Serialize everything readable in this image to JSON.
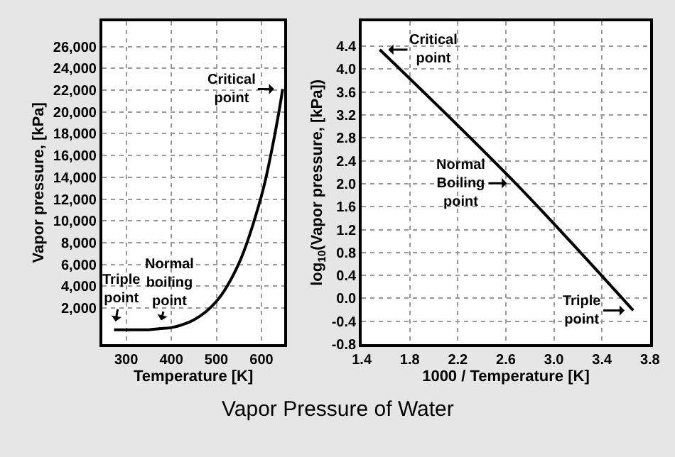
{
  "chart_data": [
    {
      "type": "line",
      "title": "Vapor Pressure of Water",
      "xlabel": "Temperature [K]",
      "ylabel": "Vapor pressure, [kPa]",
      "color": "#000000",
      "grid": true,
      "marker": "none",
      "line_style": "solid",
      "x": [
        273,
        300,
        350,
        373,
        400,
        450,
        500,
        550,
        600,
        620,
        640,
        647
      ],
      "values": [
        0,
        0,
        0,
        100,
        200,
        900,
        2600,
        6100,
        12300,
        15900,
        20300,
        22100
      ],
      "xlim": [
        247,
        651
      ],
      "ylim": [
        -1330,
        28350
      ],
      "xticks": [
        300,
        400,
        500,
        600
      ],
      "yticks": [
        {
          "value": 2000,
          "label": "2,000"
        },
        {
          "value": 4000,
          "label": "4,000"
        },
        {
          "value": 6000,
          "label": "6,000"
        },
        {
          "value": 8000,
          "label": "8,000"
        },
        {
          "value": 10000,
          "label": "10,000"
        },
        {
          "value": 12000,
          "label": "12,000"
        },
        {
          "value": 14000,
          "label": "14,000"
        },
        {
          "value": 16000,
          "label": "16,000"
        },
        {
          "value": 18000,
          "label": "18,000"
        },
        {
          "value": 20000,
          "label": "20,000"
        },
        {
          "value": 22000,
          "label": "22,000"
        },
        {
          "value": 24000,
          "label": "24,000"
        },
        {
          "value": 26000,
          "label": "26,000"
        }
      ],
      "annotations": [
        {
          "text": "Critical\npoint",
          "x": 647,
          "y": 22100
        },
        {
          "text": "Normal\nboiling\npoint",
          "x": 373,
          "y": 100
        },
        {
          "text": "Triple\npoint",
          "x": 273,
          "y": 0
        }
      ]
    },
    {
      "type": "line",
      "xlabel": "1000 / Temperature [K]",
      "ylabel": "log$_{10}$(Vapor pressure, [kPa])",
      "color": "#000000",
      "grid": true,
      "marker": "none",
      "line_style": "solid",
      "x": [
        1.55,
        2.68,
        3.66
      ],
      "values": [
        4.34,
        2.01,
        -0.21
      ],
      "xlim": [
        1.4,
        3.8
      ],
      "ylim": [
        -0.8,
        4.84
      ],
      "xticks": [
        {
          "value": 1.4,
          "label": "1.4"
        },
        {
          "value": 1.8,
          "label": "1.8"
        },
        {
          "value": 2.2,
          "label": "2.2"
        },
        {
          "value": 2.6,
          "label": "2.6"
        },
        {
          "value": 3.0,
          "label": "3.0"
        },
        {
          "value": 3.4,
          "label": "3.4"
        },
        {
          "value": 3.8,
          "label": "3.8"
        }
      ],
      "yticks": [
        {
          "value": -0.8,
          "label": "-0.8"
        },
        {
          "value": -0.4,
          "label": "-0.4"
        },
        {
          "value": 0.0,
          "label": "0.0"
        },
        {
          "value": 0.4,
          "label": "0.4"
        },
        {
          "value": 0.8,
          "label": "0.8"
        },
        {
          "value": 1.2,
          "label": "1.2"
        },
        {
          "value": 1.6,
          "label": "1.6"
        },
        {
          "value": 2.0,
          "label": "2.0"
        },
        {
          "value": 2.4,
          "label": "2.4"
        },
        {
          "value": 2.8,
          "label": "2.8"
        },
        {
          "value": 3.2,
          "label": "3.2"
        },
        {
          "value": 3.6,
          "label": "3.6"
        },
        {
          "value": 4.0,
          "label": "4.0"
        },
        {
          "value": 4.4,
          "label": "4.4"
        }
      ],
      "annotations": [
        {
          "text": "Critical\npoint",
          "x": 1.55,
          "y": 4.34
        },
        {
          "text": "Normal\nBoiling\npoint",
          "x": 2.68,
          "y": 2.01
        },
        {
          "text": "Triple\npoint",
          "x": 3.66,
          "y": -0.21
        }
      ]
    }
  ]
}
